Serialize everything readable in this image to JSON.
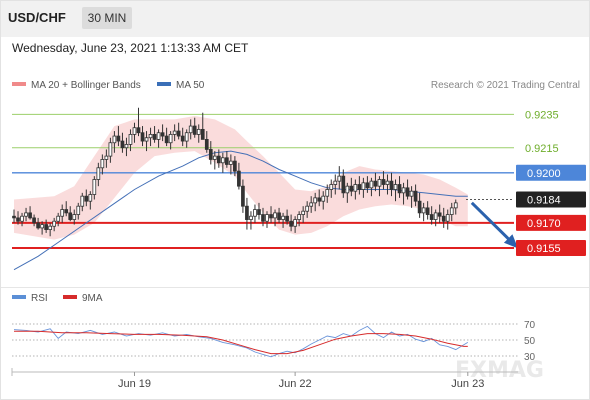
{
  "header": {
    "symbol": "USD/CHF",
    "timeframe": "30 MIN"
  },
  "datetime": "Wednesday, June 23, 2021 1:13:33 AM CET",
  "legend_main": [
    {
      "label": "MA 20 + Bollinger Bands",
      "color": "#f08a8a"
    },
    {
      "label": "MA 50",
      "color": "#3a6fb8"
    }
  ],
  "legend_rsi": [
    {
      "label": "RSI",
      "color": "#5b8fd6"
    },
    {
      "label": "9MA",
      "color": "#d62b2b"
    }
  ],
  "credit": "Research © 2021 Trading Central",
  "watermark": "FXMAG",
  "colors": {
    "red": "#e02020",
    "blue": "#4d86d9",
    "green": "#9bcf6a",
    "dark": "#222222",
    "candle": "#333333",
    "band": "#f9d6d6",
    "arrow": "#2b62ad"
  },
  "chart_data": {
    "type": "line",
    "ylim": [
      0.9137,
      0.9246
    ],
    "date_ticks": [
      {
        "label": "Jun 19",
        "x": 30
      },
      {
        "label": "Jun 22",
        "x": 70
      },
      {
        "label": "Jun 23",
        "x": 113
      }
    ],
    "levels": [
      {
        "value": 0.9235,
        "label": "0.9235",
        "style": "green"
      },
      {
        "value": 0.9215,
        "label": "0.9215",
        "style": "green"
      },
      {
        "value": 0.92,
        "label": "0.9200",
        "style": "blue"
      },
      {
        "value": 0.9184,
        "label": "0.9184",
        "style": "dark"
      },
      {
        "value": 0.917,
        "label": "0.9170",
        "style": "red"
      },
      {
        "value": 0.9155,
        "label": "0.9155",
        "style": "red"
      }
    ],
    "forecast_arrow": {
      "from": [
        114,
        0.9182
      ],
      "to": [
        125,
        0.9156
      ]
    },
    "candles": [
      [
        0.9174,
        0.9178,
        0.917,
        0.9173
      ],
      [
        0.9173,
        0.9177,
        0.9169,
        0.9171
      ],
      [
        0.9171,
        0.9176,
        0.9168,
        0.9174
      ],
      [
        0.9174,
        0.9179,
        0.9171,
        0.9176
      ],
      [
        0.9176,
        0.918,
        0.9172,
        0.9173
      ],
      [
        0.9173,
        0.9175,
        0.9168,
        0.917
      ],
      [
        0.917,
        0.9173,
        0.9166,
        0.9167
      ],
      [
        0.9167,
        0.9171,
        0.9163,
        0.9169
      ],
      [
        0.9169,
        0.9172,
        0.9164,
        0.9166
      ],
      [
        0.9166,
        0.917,
        0.9162,
        0.9168
      ],
      [
        0.9168,
        0.9173,
        0.9165,
        0.9171
      ],
      [
        0.9171,
        0.9176,
        0.9168,
        0.9174
      ],
      [
        0.9174,
        0.9181,
        0.917,
        0.9178
      ],
      [
        0.9178,
        0.9183,
        0.9174,
        0.9176
      ],
      [
        0.9176,
        0.918,
        0.9171,
        0.9172
      ],
      [
        0.9172,
        0.9178,
        0.9169,
        0.9175
      ],
      [
        0.9175,
        0.9182,
        0.9172,
        0.918
      ],
      [
        0.918,
        0.9188,
        0.9177,
        0.9186
      ],
      [
        0.9186,
        0.919,
        0.918,
        0.9183
      ],
      [
        0.9183,
        0.9189,
        0.9178,
        0.9187
      ],
      [
        0.9187,
        0.9198,
        0.9184,
        0.9196
      ],
      [
        0.9196,
        0.9206,
        0.9192,
        0.9203
      ],
      [
        0.9203,
        0.9211,
        0.9199,
        0.9208
      ],
      [
        0.9208,
        0.9214,
        0.9203,
        0.921
      ],
      [
        0.921,
        0.9221,
        0.9206,
        0.9218
      ],
      [
        0.9218,
        0.9225,
        0.9212,
        0.9222
      ],
      [
        0.9222,
        0.9228,
        0.9216,
        0.9219
      ],
      [
        0.9219,
        0.9224,
        0.9212,
        0.9215
      ],
      [
        0.9215,
        0.9221,
        0.921,
        0.9217
      ],
      [
        0.9217,
        0.9226,
        0.9213,
        0.9223
      ],
      [
        0.9223,
        0.923,
        0.9218,
        0.9227
      ],
      [
        0.9227,
        0.9239,
        0.9222,
        0.9224
      ],
      [
        0.9224,
        0.9228,
        0.9216,
        0.9219
      ],
      [
        0.9219,
        0.9225,
        0.9213,
        0.9221
      ],
      [
        0.9221,
        0.9227,
        0.9216,
        0.9223
      ],
      [
        0.9223,
        0.9228,
        0.9218,
        0.922
      ],
      [
        0.922,
        0.9226,
        0.9215,
        0.9224
      ],
      [
        0.9224,
        0.9229,
        0.9219,
        0.9222
      ],
      [
        0.9222,
        0.9227,
        0.9216,
        0.9218
      ],
      [
        0.9218,
        0.9225,
        0.9214,
        0.9223
      ],
      [
        0.9223,
        0.9229,
        0.9219,
        0.9225
      ],
      [
        0.9225,
        0.923,
        0.922,
        0.9222
      ],
      [
        0.9222,
        0.9227,
        0.9216,
        0.9219
      ],
      [
        0.9219,
        0.9226,
        0.9215,
        0.9224
      ],
      [
        0.9224,
        0.9232,
        0.922,
        0.9228
      ],
      [
        0.9228,
        0.9233,
        0.9221,
        0.9223
      ],
      [
        0.9223,
        0.9229,
        0.9218,
        0.9226
      ],
      [
        0.9226,
        0.9236,
        0.9221,
        0.922
      ],
      [
        0.922,
        0.9225,
        0.9212,
        0.9214
      ],
      [
        0.9214,
        0.9219,
        0.9205,
        0.9208
      ],
      [
        0.9208,
        0.9213,
        0.9202,
        0.921
      ],
      [
        0.921,
        0.9214,
        0.9203,
        0.9206
      ],
      [
        0.9206,
        0.9212,
        0.92,
        0.9209
      ],
      [
        0.9209,
        0.9213,
        0.9203,
        0.9205
      ],
      [
        0.9205,
        0.9211,
        0.9199,
        0.9207
      ],
      [
        0.9207,
        0.921,
        0.9198,
        0.9201
      ],
      [
        0.9201,
        0.9206,
        0.919,
        0.9192
      ],
      [
        0.9192,
        0.9196,
        0.9176,
        0.918
      ],
      [
        0.918,
        0.9185,
        0.9166,
        0.9172
      ],
      [
        0.9172,
        0.9177,
        0.9166,
        0.9174
      ],
      [
        0.9174,
        0.9181,
        0.917,
        0.9178
      ],
      [
        0.9178,
        0.9182,
        0.9172,
        0.9175
      ],
      [
        0.9175,
        0.9179,
        0.9168,
        0.9171
      ],
      [
        0.9171,
        0.9177,
        0.9167,
        0.9175
      ],
      [
        0.9175,
        0.918,
        0.917,
        0.9173
      ],
      [
        0.9173,
        0.9178,
        0.9168,
        0.9176
      ],
      [
        0.9176,
        0.9179,
        0.917,
        0.9172
      ],
      [
        0.9172,
        0.9176,
        0.9167,
        0.9174
      ],
      [
        0.9174,
        0.9178,
        0.9169,
        0.9171
      ],
      [
        0.9171,
        0.9175,
        0.9165,
        0.9168
      ],
      [
        0.9168,
        0.9174,
        0.9164,
        0.9172
      ],
      [
        0.9172,
        0.9177,
        0.9168,
        0.9175
      ],
      [
        0.9175,
        0.918,
        0.917,
        0.9177
      ],
      [
        0.9177,
        0.9183,
        0.9173,
        0.918
      ],
      [
        0.918,
        0.9186,
        0.9176,
        0.9182
      ],
      [
        0.9182,
        0.9188,
        0.9177,
        0.9185
      ],
      [
        0.9185,
        0.919,
        0.918,
        0.9183
      ],
      [
        0.9183,
        0.9189,
        0.9178,
        0.9186
      ],
      [
        0.9186,
        0.9193,
        0.9182,
        0.919
      ],
      [
        0.919,
        0.9196,
        0.9185,
        0.9193
      ],
      [
        0.9193,
        0.9199,
        0.9187,
        0.9195
      ],
      [
        0.9195,
        0.9204,
        0.919,
        0.9198
      ],
      [
        0.9198,
        0.9202,
        0.9185,
        0.9188
      ],
      [
        0.9188,
        0.9194,
        0.9182,
        0.9192
      ],
      [
        0.9192,
        0.9197,
        0.9186,
        0.9189
      ],
      [
        0.9189,
        0.9196,
        0.9184,
        0.9193
      ],
      [
        0.9193,
        0.9198,
        0.9187,
        0.919
      ],
      [
        0.919,
        0.9197,
        0.9185,
        0.9194
      ],
      [
        0.9194,
        0.9198,
        0.9188,
        0.9191
      ],
      [
        0.9191,
        0.9197,
        0.9186,
        0.9195
      ],
      [
        0.9195,
        0.92,
        0.9189,
        0.9192
      ],
      [
        0.9192,
        0.9198,
        0.9186,
        0.9196
      ],
      [
        0.9196,
        0.9201,
        0.919,
        0.9193
      ],
      [
        0.9193,
        0.9199,
        0.9187,
        0.9195
      ],
      [
        0.9195,
        0.92,
        0.9186,
        0.919
      ],
      [
        0.919,
        0.9196,
        0.9183,
        0.9193
      ],
      [
        0.9193,
        0.9198,
        0.9185,
        0.9188
      ],
      [
        0.9188,
        0.9194,
        0.9181,
        0.9191
      ],
      [
        0.9191,
        0.9196,
        0.9184,
        0.9186
      ],
      [
        0.9186,
        0.9192,
        0.9179,
        0.9189
      ],
      [
        0.9189,
        0.9193,
        0.918,
        0.9183
      ],
      [
        0.9183,
        0.9188,
        0.9173,
        0.9176
      ],
      [
        0.9176,
        0.9182,
        0.9171,
        0.9179
      ],
      [
        0.9179,
        0.9183,
        0.9172,
        0.9175
      ],
      [
        0.9175,
        0.918,
        0.9169,
        0.9172
      ],
      [
        0.9172,
        0.9178,
        0.9168,
        0.9176
      ],
      [
        0.9176,
        0.9181,
        0.917,
        0.9174
      ],
      [
        0.9174,
        0.9179,
        0.9167,
        0.9171
      ],
      [
        0.9171,
        0.9178,
        0.9166,
        0.9175
      ],
      [
        0.9175,
        0.9182,
        0.9171,
        0.9179
      ],
      [
        0.9179,
        0.9184,
        0.9175,
        0.9182
      ]
    ],
    "ma50": [
      [
        0,
        0.9142
      ],
      [
        6,
        0.915
      ],
      [
        12,
        0.916
      ],
      [
        18,
        0.917
      ],
      [
        24,
        0.918
      ],
      [
        30,
        0.919
      ],
      [
        36,
        0.9198
      ],
      [
        42,
        0.9204
      ],
      [
        46,
        0.9209
      ],
      [
        50,
        0.9212
      ],
      [
        54,
        0.9213
      ],
      [
        58,
        0.9211
      ],
      [
        62,
        0.9207
      ],
      [
        66,
        0.9202
      ],
      [
        70,
        0.9198
      ],
      [
        74,
        0.9194
      ],
      [
        78,
        0.9191
      ],
      [
        82,
        0.919
      ],
      [
        86,
        0.919
      ],
      [
        90,
        0.919
      ],
      [
        94,
        0.919
      ],
      [
        98,
        0.9189
      ],
      [
        102,
        0.9188
      ],
      [
        106,
        0.9187
      ],
      [
        110,
        0.9186
      ],
      [
        113,
        0.9186
      ]
    ],
    "bb_upper": [
      [
        0,
        0.9184
      ],
      [
        5,
        0.9185
      ],
      [
        10,
        0.9186
      ],
      [
        15,
        0.9192
      ],
      [
        20,
        0.921
      ],
      [
        25,
        0.9228
      ],
      [
        30,
        0.9232
      ],
      [
        35,
        0.9232
      ],
      [
        40,
        0.9232
      ],
      [
        45,
        0.9234
      ],
      [
        50,
        0.9232
      ],
      [
        55,
        0.9226
      ],
      [
        58,
        0.9219
      ],
      [
        62,
        0.921
      ],
      [
        66,
        0.92
      ],
      [
        70,
        0.919
      ],
      [
        74,
        0.9189
      ],
      [
        78,
        0.9192
      ],
      [
        82,
        0.92
      ],
      [
        86,
        0.9204
      ],
      [
        90,
        0.9202
      ],
      [
        94,
        0.9201
      ],
      [
        98,
        0.92
      ],
      [
        102,
        0.9199
      ],
      [
        106,
        0.9196
      ],
      [
        110,
        0.9191
      ],
      [
        113,
        0.9187
      ]
    ],
    "bb_lower": [
      [
        0,
        0.9164
      ],
      [
        5,
        0.9162
      ],
      [
        10,
        0.916
      ],
      [
        15,
        0.9163
      ],
      [
        20,
        0.917
      ],
      [
        25,
        0.9185
      ],
      [
        30,
        0.92
      ],
      [
        35,
        0.921
      ],
      [
        40,
        0.9212
      ],
      [
        45,
        0.9213
      ],
      [
        50,
        0.9206
      ],
      [
        55,
        0.9198
      ],
      [
        58,
        0.9188
      ],
      [
        62,
        0.9176
      ],
      [
        66,
        0.9166
      ],
      [
        70,
        0.9163
      ],
      [
        74,
        0.9164
      ],
      [
        78,
        0.9168
      ],
      [
        82,
        0.9174
      ],
      [
        86,
        0.9178
      ],
      [
        90,
        0.918
      ],
      [
        94,
        0.9181
      ],
      [
        98,
        0.918
      ],
      [
        102,
        0.9178
      ],
      [
        106,
        0.9172
      ],
      [
        110,
        0.9168
      ],
      [
        113,
        0.9168
      ]
    ],
    "rsi_ticks": [
      70,
      50,
      30
    ],
    "rsi_ylim": [
      15,
      80
    ],
    "rsi": [
      [
        0,
        63
      ],
      [
        3,
        62
      ],
      [
        6,
        60
      ],
      [
        9,
        64
      ],
      [
        11,
        52
      ],
      [
        13,
        60
      ],
      [
        16,
        58
      ],
      [
        19,
        62
      ],
      [
        22,
        57
      ],
      [
        25,
        60
      ],
      [
        28,
        55
      ],
      [
        31,
        58
      ],
      [
        34,
        56
      ],
      [
        37,
        59
      ],
      [
        40,
        55
      ],
      [
        43,
        57
      ],
      [
        46,
        54
      ],
      [
        49,
        52
      ],
      [
        52,
        47
      ],
      [
        55,
        44
      ],
      [
        58,
        40
      ],
      [
        60,
        35
      ],
      [
        62,
        32
      ],
      [
        64,
        29
      ],
      [
        66,
        33
      ],
      [
        68,
        36
      ],
      [
        70,
        34
      ],
      [
        72,
        39
      ],
      [
        74,
        45
      ],
      [
        76,
        50
      ],
      [
        78,
        55
      ],
      [
        80,
        53
      ],
      [
        82,
        58
      ],
      [
        84,
        55
      ],
      [
        86,
        62
      ],
      [
        88,
        67
      ],
      [
        90,
        58
      ],
      [
        92,
        53
      ],
      [
        94,
        60
      ],
      [
        96,
        55
      ],
      [
        98,
        57
      ],
      [
        100,
        51
      ],
      [
        102,
        48
      ],
      [
        104,
        52
      ],
      [
        106,
        44
      ],
      [
        108,
        42
      ],
      [
        110,
        38
      ],
      [
        112,
        44
      ],
      [
        113,
        47
      ]
    ],
    "rsi_ma": [
      [
        0,
        61
      ],
      [
        6,
        61
      ],
      [
        12,
        59
      ],
      [
        18,
        59
      ],
      [
        24,
        58
      ],
      [
        30,
        57
      ],
      [
        36,
        57
      ],
      [
        42,
        56
      ],
      [
        48,
        54
      ],
      [
        52,
        50
      ],
      [
        56,
        44
      ],
      [
        60,
        38
      ],
      [
        64,
        33
      ],
      [
        68,
        33
      ],
      [
        72,
        37
      ],
      [
        76,
        44
      ],
      [
        80,
        51
      ],
      [
        84,
        55
      ],
      [
        88,
        58
      ],
      [
        92,
        58
      ],
      [
        96,
        57
      ],
      [
        100,
        55
      ],
      [
        104,
        51
      ],
      [
        108,
        46
      ],
      [
        112,
        42
      ],
      [
        113,
        42
      ]
    ]
  }
}
